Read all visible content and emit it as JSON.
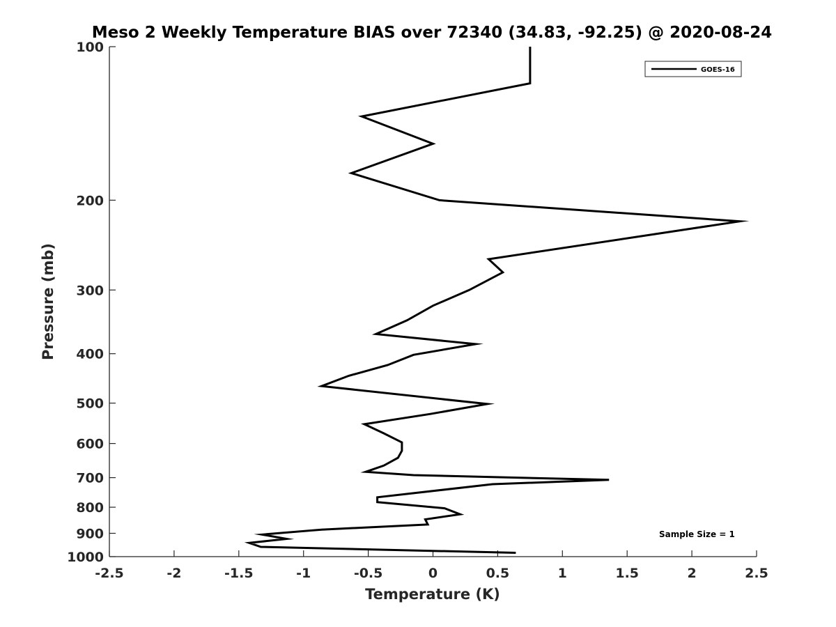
{
  "chart_data": {
    "type": "line",
    "title": "Meso 2 Weekly Temperature BIAS over 72340 (34.83, -92.25) @ 2020-08-24",
    "xlabel": "Temperature (K)",
    "ylabel": "Pressure (mb)",
    "xlim": [
      -2.5,
      2.5
    ],
    "ylim": [
      100,
      1000
    ],
    "y_scale": "log",
    "y_reversed": true,
    "x_ticks": [
      -2.5,
      -2,
      -1.5,
      -1,
      -0.5,
      0,
      0.5,
      1,
      1.5,
      2,
      2.5
    ],
    "x_tick_labels": [
      "-2.5",
      "-2",
      "-1.5",
      "-1",
      "-0.5",
      "0",
      "0.5",
      "1",
      "1.5",
      "2",
      "2.5"
    ],
    "y_ticks": [
      100,
      200,
      300,
      400,
      500,
      600,
      700,
      800,
      900,
      1000
    ],
    "y_tick_labels": [
      "100",
      "200",
      "300",
      "400",
      "500",
      "600",
      "700",
      "800",
      "900",
      "1000"
    ],
    "grid": false,
    "legend_position": "top-right",
    "series": [
      {
        "name": "GOES-16",
        "color": "#000000",
        "points": [
          {
            "x": 0.75,
            "p": 100
          },
          {
            "x": 0.75,
            "p": 118
          },
          {
            "x": -0.55,
            "p": 137
          },
          {
            "x": 0.0,
            "p": 155
          },
          {
            "x": -0.63,
            "p": 177
          },
          {
            "x": 0.05,
            "p": 200
          },
          {
            "x": 2.37,
            "p": 220
          },
          {
            "x": 0.43,
            "p": 261
          },
          {
            "x": 0.54,
            "p": 277
          },
          {
            "x": 0.28,
            "p": 300
          },
          {
            "x": 0.0,
            "p": 322
          },
          {
            "x": -0.2,
            "p": 344
          },
          {
            "x": -0.44,
            "p": 366
          },
          {
            "x": 0.33,
            "p": 383
          },
          {
            "x": -0.15,
            "p": 402
          },
          {
            "x": -0.35,
            "p": 421
          },
          {
            "x": -0.65,
            "p": 442
          },
          {
            "x": -0.86,
            "p": 463
          },
          {
            "x": 0.42,
            "p": 502
          },
          {
            "x": -0.02,
            "p": 525
          },
          {
            "x": -0.53,
            "p": 550
          },
          {
            "x": -0.38,
            "p": 573
          },
          {
            "x": -0.24,
            "p": 597
          },
          {
            "x": -0.24,
            "p": 620
          },
          {
            "x": -0.27,
            "p": 640
          },
          {
            "x": -0.38,
            "p": 663
          },
          {
            "x": -0.52,
            "p": 682
          },
          {
            "x": -0.15,
            "p": 692
          },
          {
            "x": 1.36,
            "p": 707
          },
          {
            "x": 0.46,
            "p": 721
          },
          {
            "x": -0.43,
            "p": 765
          },
          {
            "x": -0.43,
            "p": 782
          },
          {
            "x": 0.09,
            "p": 804
          },
          {
            "x": 0.21,
            "p": 826
          },
          {
            "x": -0.06,
            "p": 845
          },
          {
            "x": -0.04,
            "p": 865
          },
          {
            "x": -0.86,
            "p": 885
          },
          {
            "x": -1.32,
            "p": 905
          },
          {
            "x": -1.13,
            "p": 923
          },
          {
            "x": -1.42,
            "p": 940
          },
          {
            "x": -1.33,
            "p": 957
          },
          {
            "x": 0.64,
            "p": 983
          }
        ]
      }
    ],
    "annotation": "Sample Size = 1"
  }
}
